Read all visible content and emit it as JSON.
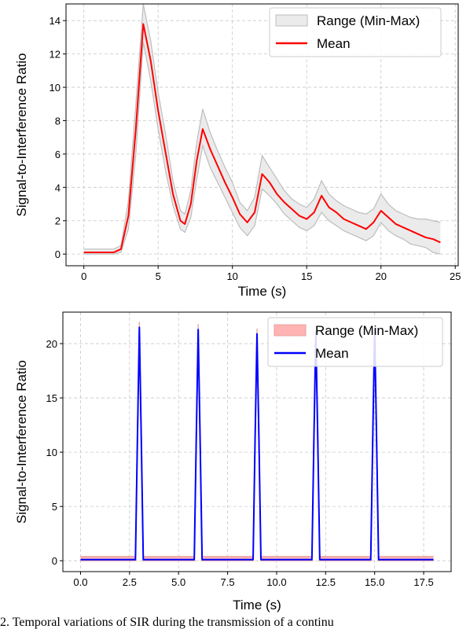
{
  "caption": "2.  Temporal variations of SIR during the transmission of a continu",
  "chart_data": [
    {
      "type": "line",
      "xlabel": "Time (s)",
      "ylabel": "Signal-to-Interference Ratio",
      "xlim": [
        -1.2,
        25.2
      ],
      "ylim": [
        -0.7,
        15.0
      ],
      "xticks": [
        0,
        5,
        10,
        15,
        20,
        25
      ],
      "xtick_labels": [
        "0",
        "5",
        "10",
        "15",
        "20",
        "25"
      ],
      "yticks": [
        0,
        2,
        4,
        6,
        8,
        10,
        12,
        14
      ],
      "ytick_labels": [
        "0",
        "2",
        "4",
        "6",
        "8",
        "10",
        "12",
        "14"
      ],
      "grid": true,
      "legend_position": "top-right",
      "series": [
        {
          "name": "Range (Min-Max)",
          "kind": "band",
          "color": "#bdbdbd",
          "x": [
            0,
            2.0,
            2.5,
            3.0,
            3.5,
            4.0,
            4.5,
            5.0,
            5.5,
            6.0,
            6.5,
            6.8,
            7.2,
            7.6,
            8.0,
            8.5,
            9.0,
            9.5,
            10.0,
            10.5,
            11.0,
            11.5,
            12.0,
            12.5,
            13.0,
            13.5,
            14.0,
            14.5,
            15.0,
            15.5,
            16.0,
            16.5,
            17.0,
            17.5,
            18.0,
            18.5,
            19.0,
            19.5,
            20.0,
            20.5,
            21.0,
            21.5,
            22.0,
            22.5,
            23.0,
            23.5,
            24.0
          ],
          "lower": [
            0.0,
            0.0,
            0.1,
            1.5,
            6.0,
            12.7,
            10.4,
            7.5,
            5.0,
            2.9,
            1.5,
            1.3,
            2.2,
            4.5,
            6.5,
            5.2,
            4.3,
            3.4,
            2.5,
            1.6,
            1.1,
            1.7,
            3.9,
            3.5,
            3.0,
            2.4,
            2.0,
            1.6,
            1.4,
            1.7,
            2.5,
            2.0,
            1.7,
            1.4,
            1.2,
            1.0,
            0.8,
            1.1,
            1.9,
            1.4,
            1.1,
            0.9,
            0.6,
            0.5,
            0.4,
            0.1,
            0.0
          ],
          "upper": [
            0.3,
            0.3,
            0.5,
            3.2,
            9.0,
            15.0,
            12.8,
            9.7,
            7.2,
            4.4,
            2.6,
            2.4,
            3.8,
            6.7,
            8.7,
            7.3,
            6.2,
            5.2,
            4.3,
            3.1,
            2.6,
            3.4,
            5.9,
            5.2,
            4.5,
            3.8,
            3.3,
            3.0,
            2.8,
            3.3,
            4.4,
            3.6,
            3.2,
            2.9,
            2.7,
            2.5,
            2.4,
            2.7,
            3.6,
            3.0,
            2.6,
            2.4,
            2.2,
            2.1,
            2.1,
            2.0,
            1.9
          ]
        },
        {
          "name": "Mean",
          "kind": "line",
          "color": "#ff0000",
          "x": [
            0,
            2.0,
            2.5,
            3.0,
            3.5,
            4.0,
            4.5,
            5.0,
            5.5,
            6.0,
            6.5,
            6.8,
            7.2,
            7.6,
            8.0,
            8.5,
            9.0,
            9.5,
            10.0,
            10.5,
            11.0,
            11.5,
            12.0,
            12.5,
            13.0,
            13.5,
            14.0,
            14.5,
            15.0,
            15.5,
            16.0,
            16.5,
            17.0,
            17.5,
            18.0,
            18.5,
            19.0,
            19.5,
            20.0,
            20.5,
            21.0,
            21.5,
            22.0,
            22.5,
            23.0,
            23.5,
            24.0
          ],
          "y": [
            0.1,
            0.1,
            0.3,
            2.3,
            7.5,
            13.8,
            11.6,
            8.6,
            6.1,
            3.6,
            2.0,
            1.8,
            3.0,
            5.6,
            7.5,
            6.3,
            5.3,
            4.3,
            3.4,
            2.4,
            1.9,
            2.5,
            4.8,
            4.3,
            3.6,
            3.1,
            2.7,
            2.3,
            2.1,
            2.5,
            3.5,
            2.8,
            2.5,
            2.1,
            1.9,
            1.7,
            1.5,
            1.9,
            2.6,
            2.2,
            1.8,
            1.6,
            1.4,
            1.2,
            1.0,
            0.9,
            0.7
          ]
        }
      ]
    },
    {
      "type": "line",
      "xlabel": "Time (s)",
      "ylabel": "Signal-to-Interference Ratio",
      "xlim": [
        -0.9,
        18.9
      ],
      "ylim": [
        -1.0,
        22.9
      ],
      "xticks": [
        0,
        2.5,
        5,
        7.5,
        10,
        12.5,
        15,
        17.5
      ],
      "xtick_labels": [
        "0.0",
        "2.5",
        "5.0",
        "7.5",
        "10.0",
        "12.5",
        "15.0",
        "17.5"
      ],
      "yticks": [
        0,
        5,
        10,
        15,
        20
      ],
      "ytick_labels": [
        "0",
        "5",
        "10",
        "15",
        "20"
      ],
      "grid": true,
      "legend_position": "top-right",
      "series": [
        {
          "name": "Range (Min-Max)",
          "kind": "band",
          "color": "#ff9999",
          "x": [
            0,
            2.8,
            2.9,
            3.0,
            3.1,
            3.2,
            5.8,
            5.9,
            6.0,
            6.1,
            6.2,
            8.8,
            8.9,
            9.0,
            9.1,
            9.2,
            11.8,
            11.9,
            12.0,
            12.1,
            12.2,
            14.8,
            14.9,
            15.0,
            15.1,
            15.2,
            18.0
          ],
          "lower": [
            0.0,
            0.0,
            10.0,
            21.0,
            10.0,
            0.0,
            0.0,
            10.0,
            20.8,
            10.0,
            0.0,
            0.0,
            10.0,
            20.4,
            10.0,
            0.0,
            0.0,
            10.0,
            20.6,
            10.0,
            0.0,
            0.0,
            10.0,
            20.8,
            10.0,
            0.0,
            0.0
          ],
          "upper": [
            0.4,
            0.4,
            12.0,
            22.0,
            12.0,
            0.4,
            0.4,
            12.0,
            21.8,
            12.0,
            0.4,
            0.4,
            12.0,
            21.4,
            12.0,
            0.4,
            0.4,
            12.0,
            21.6,
            12.0,
            0.4,
            0.4,
            12.0,
            21.8,
            12.0,
            0.4,
            0.4
          ]
        },
        {
          "name": "Mean",
          "kind": "line",
          "color": "#0000ff",
          "x": [
            0,
            2.8,
            2.9,
            3.0,
            3.1,
            3.2,
            5.8,
            5.9,
            6.0,
            6.1,
            6.2,
            8.8,
            8.9,
            9.0,
            9.1,
            9.2,
            11.8,
            11.9,
            12.0,
            12.1,
            12.2,
            14.8,
            14.9,
            15.0,
            15.1,
            15.2,
            18.0
          ],
          "y": [
            0.1,
            0.1,
            11.0,
            21.5,
            11.0,
            0.1,
            0.1,
            11.0,
            21.3,
            11.0,
            0.1,
            0.1,
            11.0,
            20.9,
            11.0,
            0.1,
            0.1,
            11.0,
            21.1,
            11.0,
            0.1,
            0.1,
            11.0,
            21.3,
            11.0,
            0.1,
            0.1
          ]
        }
      ]
    }
  ]
}
